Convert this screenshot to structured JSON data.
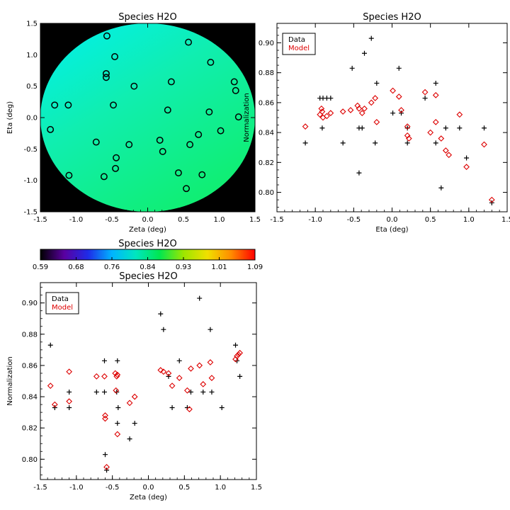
{
  "chart_data": [
    {
      "type": "scatter",
      "title": "Species H2O",
      "xlabel": "Zeta (deg)",
      "ylabel": "Eta (deg)",
      "xlim": [
        -1.5,
        1.5
      ],
      "ylim": [
        -1.5,
        1.5
      ],
      "xticks": [
        "-1.5",
        "-1.0",
        "-0.5",
        "0.0",
        "0.5",
        "1.0",
        "1.5"
      ],
      "yticks": [
        "-1.5",
        "-1.0",
        "-0.5",
        "0.0",
        "0.5",
        "1.0",
        "1.5"
      ],
      "background_fill": "black",
      "field_region": "circle",
      "marker_color": "#000000",
      "points": [
        {
          "x": -0.57,
          "y": 1.3
        },
        {
          "x": 0.57,
          "y": 1.2
        },
        {
          "x": -0.46,
          "y": 0.97
        },
        {
          "x": 0.88,
          "y": 0.88
        },
        {
          "x": -0.58,
          "y": 0.7
        },
        {
          "x": -0.58,
          "y": 0.64
        },
        {
          "x": 0.33,
          "y": 0.57
        },
        {
          "x": 1.21,
          "y": 0.57
        },
        {
          "x": -0.19,
          "y": 0.5
        },
        {
          "x": 1.23,
          "y": 0.43
        },
        {
          "x": -1.3,
          "y": 0.2
        },
        {
          "x": -1.11,
          "y": 0.2
        },
        {
          "x": -0.48,
          "y": 0.2
        },
        {
          "x": 0.28,
          "y": 0.12
        },
        {
          "x": 0.86,
          "y": 0.09
        },
        {
          "x": 1.27,
          "y": 0.01
        },
        {
          "x": -1.36,
          "y": -0.19
        },
        {
          "x": 1.02,
          "y": -0.21
        },
        {
          "x": 0.71,
          "y": -0.27
        },
        {
          "x": 0.17,
          "y": -0.36
        },
        {
          "x": -0.72,
          "y": -0.39
        },
        {
          "x": -0.26,
          "y": -0.43
        },
        {
          "x": 0.59,
          "y": -0.43
        },
        {
          "x": 0.21,
          "y": -0.54
        },
        {
          "x": -0.44,
          "y": -0.64
        },
        {
          "x": -0.45,
          "y": -0.81
        },
        {
          "x": 0.43,
          "y": -0.88
        },
        {
          "x": -1.1,
          "y": -0.92
        },
        {
          "x": 0.76,
          "y": -0.91
        },
        {
          "x": -0.61,
          "y": -0.94
        },
        {
          "x": 0.54,
          "y": -1.13
        }
      ]
    },
    {
      "type": "scatter",
      "title": "Species H2O",
      "xlabel": "Eta (deg)",
      "ylabel": "Normalization",
      "xlim": [
        -1.5,
        1.5
      ],
      "ylim": [
        0.787,
        0.913
      ],
      "xticks": [
        "-1.5",
        "-1.0",
        "-0.5",
        "0.0",
        "0.5",
        "1.0",
        "1.5"
      ],
      "yticks": [
        "0.80",
        "0.82",
        "0.84",
        "0.86",
        "0.88",
        "0.90"
      ],
      "legend": {
        "position": "top-left",
        "entries": [
          "Data",
          "Model"
        ]
      },
      "series": [
        {
          "name": "Data",
          "marker": "plus",
          "color": "#000000",
          "points": [
            [
              -1.13,
              0.833
            ],
            [
              -0.94,
              0.863
            ],
            [
              -0.91,
              0.843
            ],
            [
              -0.9,
              0.863
            ],
            [
              -0.85,
              0.863
            ],
            [
              -0.8,
              0.863
            ],
            [
              -0.64,
              0.833
            ],
            [
              -0.52,
              0.883
            ],
            [
              -0.43,
              0.843
            ],
            [
              -0.43,
              0.813
            ],
            [
              -0.39,
              0.843
            ],
            [
              -0.36,
              0.893
            ],
            [
              -0.27,
              0.903
            ],
            [
              -0.22,
              0.833
            ],
            [
              -0.2,
              0.873
            ],
            [
              0.01,
              0.853
            ],
            [
              0.09,
              0.883
            ],
            [
              0.12,
              0.853
            ],
            [
              0.2,
              0.843
            ],
            [
              0.2,
              0.833
            ],
            [
              0.43,
              0.863
            ],
            [
              0.57,
              0.873
            ],
            [
              0.57,
              0.833
            ],
            [
              0.64,
              0.803
            ],
            [
              0.7,
              0.843
            ],
            [
              0.88,
              0.843
            ],
            [
              0.97,
              0.823
            ],
            [
              1.2,
              0.843
            ],
            [
              1.3,
              0.793
            ]
          ]
        },
        {
          "name": "Model",
          "marker": "diamond",
          "color": "#dd0000",
          "points": [
            [
              -1.13,
              0.844
            ],
            [
              -0.94,
              0.852
            ],
            [
              -0.92,
              0.856
            ],
            [
              -0.91,
              0.854
            ],
            [
              -0.9,
              0.85
            ],
            [
              -0.85,
              0.851
            ],
            [
              -0.8,
              0.853
            ],
            [
              -0.64,
              0.854
            ],
            [
              -0.54,
              0.855
            ],
            [
              -0.45,
              0.858
            ],
            [
              -0.43,
              0.856
            ],
            [
              -0.39,
              0.853
            ],
            [
              -0.36,
              0.856
            ],
            [
              -0.27,
              0.86
            ],
            [
              -0.22,
              0.863
            ],
            [
              -0.2,
              0.847
            ],
            [
              0.01,
              0.868
            ],
            [
              0.09,
              0.864
            ],
            [
              0.12,
              0.855
            ],
            [
              0.2,
              0.844
            ],
            [
              0.2,
              0.838
            ],
            [
              0.22,
              0.836
            ],
            [
              0.43,
              0.867
            ],
            [
              0.5,
              0.84
            ],
            [
              0.57,
              0.865
            ],
            [
              0.57,
              0.847
            ],
            [
              0.64,
              0.836
            ],
            [
              0.7,
              0.828
            ],
            [
              0.74,
              0.825
            ],
            [
              0.88,
              0.852
            ],
            [
              0.97,
              0.817
            ],
            [
              1.2,
              0.832
            ],
            [
              1.3,
              0.795
            ]
          ]
        }
      ]
    },
    {
      "type": "colorbar",
      "title": "Species H2O",
      "range": [
        0.59,
        1.09
      ],
      "tick_labels": [
        "0.59",
        "0.68",
        "0.76",
        "0.84",
        "0.93",
        "1.01",
        "1.09"
      ],
      "colors": [
        "#000000",
        "#5a00a0",
        "#1e2be8",
        "#00b4ff",
        "#00e6c0",
        "#00e650",
        "#9ce600",
        "#f0e000",
        "#ff8c00",
        "#ff0000"
      ]
    },
    {
      "type": "scatter",
      "title": "Species H2O",
      "xlabel": "Zeta (deg)",
      "ylabel": "Normalization",
      "xlim": [
        -1.5,
        1.5
      ],
      "ylim": [
        0.787,
        0.913
      ],
      "xticks": [
        "-1.5",
        "-1.0",
        "-0.5",
        "0.0",
        "0.5",
        "1.0",
        "1.5"
      ],
      "yticks": [
        "0.80",
        "0.82",
        "0.84",
        "0.86",
        "0.88",
        "0.90"
      ],
      "legend": {
        "position": "top-left",
        "entries": [
          "Data",
          "Model"
        ]
      },
      "series": [
        {
          "name": "Data",
          "marker": "plus",
          "color": "#000000",
          "points": [
            [
              -1.36,
              0.873
            ],
            [
              -1.3,
              0.833
            ],
            [
              -1.1,
              0.843
            ],
            [
              -1.1,
              0.833
            ],
            [
              -0.72,
              0.843
            ],
            [
              -0.61,
              0.863
            ],
            [
              -0.61,
              0.843
            ],
            [
              -0.6,
              0.803
            ],
            [
              -0.58,
              0.793
            ],
            [
              -0.44,
              0.843
            ],
            [
              -0.43,
              0.863
            ],
            [
              -0.43,
              0.823
            ],
            [
              -0.42,
              0.833
            ],
            [
              -0.26,
              0.813
            ],
            [
              -0.19,
              0.823
            ],
            [
              0.17,
              0.893
            ],
            [
              0.21,
              0.883
            ],
            [
              0.28,
              0.853
            ],
            [
              0.33,
              0.833
            ],
            [
              0.43,
              0.863
            ],
            [
              0.54,
              0.833
            ],
            [
              0.59,
              0.843
            ],
            [
              0.71,
              0.903
            ],
            [
              0.76,
              0.843
            ],
            [
              0.86,
              0.883
            ],
            [
              0.88,
              0.843
            ],
            [
              1.02,
              0.833
            ],
            [
              1.21,
              0.873
            ],
            [
              1.23,
              0.863
            ],
            [
              1.27,
              0.853
            ]
          ]
        },
        {
          "name": "Model",
          "marker": "diamond",
          "color": "#dd0000",
          "points": [
            [
              -1.36,
              0.847
            ],
            [
              -1.3,
              0.835
            ],
            [
              -1.1,
              0.856
            ],
            [
              -1.1,
              0.837
            ],
            [
              -0.72,
              0.853
            ],
            [
              -0.61,
              0.853
            ],
            [
              -0.6,
              0.826
            ],
            [
              -0.6,
              0.828
            ],
            [
              -0.58,
              0.795
            ],
            [
              -0.46,
              0.855
            ],
            [
              -0.45,
              0.844
            ],
            [
              -0.44,
              0.853
            ],
            [
              -0.43,
              0.854
            ],
            [
              -0.43,
              0.816
            ],
            [
              -0.26,
              0.836
            ],
            [
              -0.19,
              0.84
            ],
            [
              0.17,
              0.857
            ],
            [
              0.21,
              0.856
            ],
            [
              0.28,
              0.855
            ],
            [
              0.33,
              0.847
            ],
            [
              0.43,
              0.852
            ],
            [
              0.54,
              0.844
            ],
            [
              0.57,
              0.832
            ],
            [
              0.59,
              0.858
            ],
            [
              0.71,
              0.86
            ],
            [
              0.76,
              0.848
            ],
            [
              0.86,
              0.862
            ],
            [
              0.88,
              0.852
            ],
            [
              1.21,
              0.864
            ],
            [
              1.23,
              0.866
            ],
            [
              1.25,
              0.867
            ],
            [
              1.27,
              0.868
            ]
          ]
        }
      ]
    }
  ]
}
